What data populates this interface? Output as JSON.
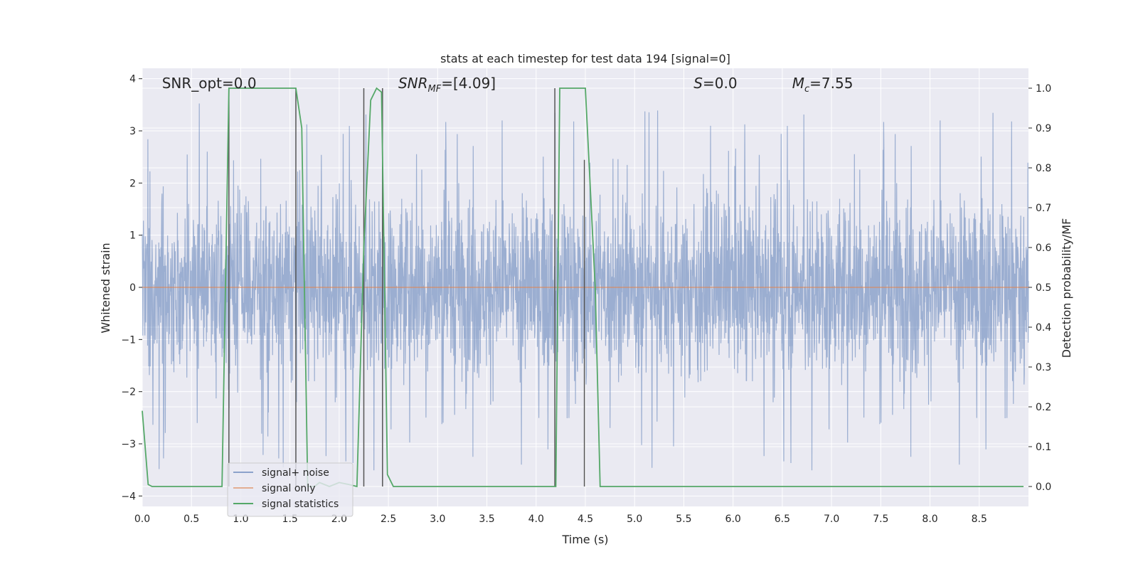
{
  "chart_data": {
    "type": "line",
    "title": "stats at each timestep for test data 194 [signal=0]",
    "xlabel": "Time (s)",
    "ylabel": "Whitened strain",
    "y2label": "Detection probability/MF",
    "xlim": [
      0.0,
      9.0
    ],
    "ylim": [
      -4.2,
      4.2
    ],
    "y2lim": [
      -0.05,
      1.05
    ],
    "xticks": [
      "0.0",
      "0.5",
      "1.0",
      "1.5",
      "2.0",
      "2.5",
      "3.0",
      "3.5",
      "4.0",
      "4.5",
      "5.0",
      "5.5",
      "6.0",
      "6.5",
      "7.0",
      "7.5",
      "8.0",
      "8.5"
    ],
    "xtick_values": [
      0.0,
      0.5,
      1.0,
      1.5,
      2.0,
      2.5,
      3.0,
      3.5,
      4.0,
      4.5,
      5.0,
      5.5,
      6.0,
      6.5,
      7.0,
      7.5,
      8.0,
      8.5
    ],
    "yticks": [
      "−4",
      "−3",
      "−2",
      "−1",
      "0",
      "1",
      "2",
      "3",
      "4"
    ],
    "ytick_values": [
      -4,
      -3,
      -2,
      -1,
      0,
      1,
      2,
      3,
      4
    ],
    "y2ticks": [
      "0.0",
      "0.1",
      "0.2",
      "0.3",
      "0.4",
      "0.5",
      "0.6",
      "0.7",
      "0.8",
      "0.9",
      "1.0"
    ],
    "y2tick_values": [
      0.0,
      0.1,
      0.2,
      0.3,
      0.4,
      0.5,
      0.6,
      0.7,
      0.8,
      0.9,
      1.0
    ],
    "grid": true,
    "legend_position": "lower-left",
    "annotations": [
      {
        "text": "SNR_opt=0.0",
        "x": 0.2
      },
      {
        "text": "SNR_MF=[4.09]",
        "x": 2.6
      },
      {
        "text": "S=0.0",
        "x": 5.6
      },
      {
        "text": "M_c=7.55",
        "x": 6.6
      }
    ],
    "series": [
      {
        "name": "signal+ noise",
        "color": "#4c72b0",
        "axis": "left",
        "kind": "noise",
        "typical_envelope": [
          -1.7,
          1.7
        ],
        "peak_max": 3.7,
        "peak_min": -3.9
      },
      {
        "name": "signal only",
        "color": "#dd8452",
        "axis": "left",
        "x": [
          0.0,
          9.0
        ],
        "y": [
          0.0,
          0.0
        ]
      },
      {
        "name": "signal statistics",
        "color": "#55a868",
        "axis": "right",
        "x": [
          0.0,
          0.06,
          0.1,
          0.81,
          0.88,
          0.94,
          1.0,
          1.56,
          1.62,
          1.68,
          1.75,
          1.8,
          1.9,
          2.0,
          2.1,
          2.18,
          2.25,
          2.32,
          2.38,
          2.43,
          2.49,
          2.55,
          2.6,
          4.0,
          4.2,
          4.24,
          4.3,
          4.5,
          4.6,
          4.65,
          5.0,
          8.95
        ],
        "y": [
          0.19,
          0.005,
          0.0,
          0.0,
          1.0,
          1.0,
          1.0,
          1.0,
          0.9,
          0.0,
          0.0,
          0.01,
          0.0,
          0.01,
          0.005,
          0.0,
          0.6,
          0.97,
          1.0,
          0.99,
          0.03,
          0.0,
          0.0,
          0.0,
          0.0,
          1.0,
          1.0,
          1.0,
          0.5,
          0.0,
          0.0,
          0.0
        ]
      }
    ],
    "vertical_markers": [
      {
        "x": 0.88,
        "y_top": 1.0
      },
      {
        "x": 1.56,
        "y_top": 1.0
      },
      {
        "x": 2.25,
        "y_top": 1.0
      },
      {
        "x": 2.44,
        "y_top": 1.0
      },
      {
        "x": 4.19,
        "y_top": 1.0
      },
      {
        "x": 4.49,
        "y_top": 0.82
      }
    ]
  }
}
